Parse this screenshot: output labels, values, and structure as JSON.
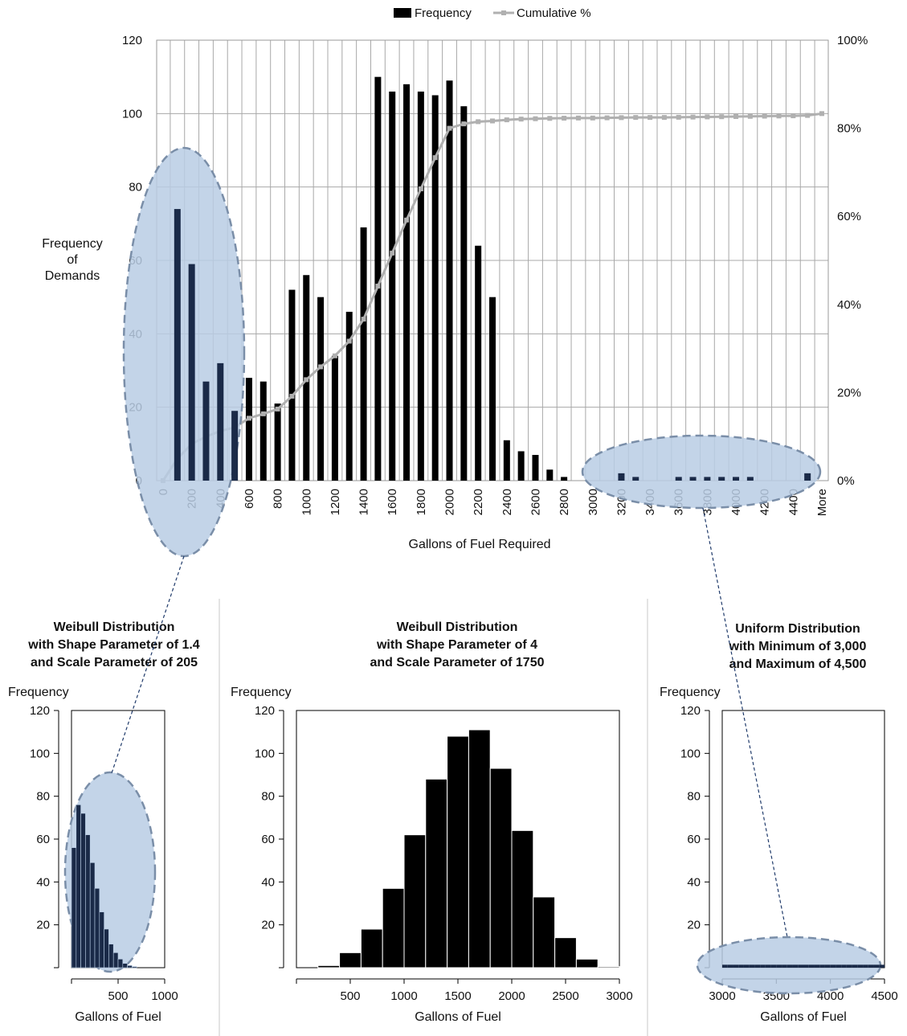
{
  "chart_data": [
    {
      "type": "bar",
      "xlabel": "Gallons of Fuel Required",
      "ylabel_lines": [
        "Frequency",
        "of",
        "Demands"
      ],
      "ylim": [
        0,
        120
      ],
      "y_ticks": [
        0,
        20,
        40,
        60,
        80,
        100,
        120
      ],
      "y2lim": [
        0,
        120
      ],
      "y2_ticks": [
        "0%",
        "20%",
        "40%",
        "60%",
        "80%",
        "100%"
      ],
      "legend_position": "top",
      "legend": [
        "Frequency",
        "Cumulative %"
      ],
      "colors": {
        "frequency": "#000000",
        "cumulative": "#b0b0b0",
        "highlight_fill": "#b8cce4",
        "highlight_stroke": "#7a8ea8"
      },
      "categories": [
        "0",
        "100",
        "200",
        "300",
        "400",
        "500",
        "600",
        "700",
        "800",
        "900",
        "1000",
        "1100",
        "1200",
        "1300",
        "1400",
        "1500",
        "1600",
        "1700",
        "1800",
        "1900",
        "2000",
        "2100",
        "2200",
        "2300",
        "2400",
        "2500",
        "2600",
        "2700",
        "2800",
        "2900",
        "3000",
        "3100",
        "3200",
        "3300",
        "3400",
        "3500",
        "3600",
        "3700",
        "3800",
        "3900",
        "4000",
        "4100",
        "4200",
        "4300",
        "4400",
        "4500",
        "More"
      ],
      "tick_labels": [
        "0",
        "",
        "200",
        "",
        "400",
        "",
        "600",
        "",
        "800",
        "",
        "1000",
        "",
        "1200",
        "",
        "1400",
        "",
        "1600",
        "",
        "1800",
        "",
        "2000",
        "",
        "2200",
        "",
        "2400",
        "",
        "2600",
        "",
        "2800",
        "",
        "3000",
        "",
        "3200",
        "",
        "3400",
        "",
        "3600",
        "",
        "3800",
        "",
        "4000",
        "",
        "4200",
        "",
        "4400",
        "",
        "More"
      ],
      "series": [
        {
          "name": "Frequency",
          "values": [
            0,
            74,
            59,
            27,
            32,
            19,
            28,
            27,
            21,
            52,
            56,
            50,
            34,
            46,
            69,
            110,
            106,
            108,
            106,
            105,
            109,
            102,
            64,
            50,
            11,
            8,
            7,
            3,
            1,
            0,
            0,
            0,
            2,
            1,
            0,
            0,
            1,
            1,
            1,
            1,
            1,
            1,
            0,
            0,
            0,
            2,
            0
          ]
        },
        {
          "name": "Cumulative %",
          "values": [
            0,
            6,
            10,
            12,
            13.5,
            14.5,
            17,
            18.2,
            19.5,
            23,
            27.5,
            31,
            34,
            38,
            44,
            53,
            62,
            71,
            79.5,
            88,
            96,
            97.2,
            97.8,
            98,
            98.3,
            98.5,
            98.6,
            98.7,
            98.75,
            98.8,
            98.8,
            98.85,
            98.9,
            98.95,
            98.95,
            98.95,
            99,
            99.05,
            99.1,
            99.15,
            99.2,
            99.25,
            99.3,
            99.35,
            99.4,
            99.5,
            100
          ]
        }
      ]
    },
    {
      "type": "bar",
      "title_lines": [
        "Weibull Distribution",
        "with  Shape Parameter of 1.4",
        "and  Scale Parameter of 205"
      ],
      "ylabel": "Frequency",
      "xlabel": "Gallons of Fuel",
      "xlim": [
        0,
        1000
      ],
      "ylim": [
        0,
        120
      ],
      "x_ticks": [
        "500",
        "1000"
      ],
      "y_ticks": [
        "20",
        "40",
        "60",
        "80",
        "100",
        "120"
      ],
      "bin_width": 50,
      "values": [
        56,
        76,
        72,
        62,
        49,
        37,
        26,
        18,
        11,
        7,
        4,
        2,
        1,
        0.5
      ]
    },
    {
      "type": "bar",
      "title_lines": [
        "Weibull Distribution",
        "with  Shape Parameter of 4",
        "and  Scale Parameter of 1750"
      ],
      "ylabel": "Frequency",
      "xlabel": "Gallons of Fuel",
      "xlim": [
        0,
        3000
      ],
      "ylim": [
        0,
        120
      ],
      "x_ticks": [
        "500",
        "1000",
        "1500",
        "2000",
        "2500",
        "3000"
      ],
      "y_ticks": [
        "20",
        "40",
        "60",
        "80",
        "100",
        "120"
      ],
      "bin_width": 200,
      "bins_start": 200,
      "values": [
        1,
        7,
        18,
        37,
        62,
        88,
        108,
        111,
        93,
        64,
        33,
        14,
        4,
        0.5
      ]
    },
    {
      "type": "bar",
      "title_lines": [
        "Uniform Distribution",
        "with Minimum of 3,000",
        "and Maximum of 4,500"
      ],
      "ylabel": "Frequency",
      "xlabel": "Gallons of Fuel",
      "xlim": [
        3000,
        4500
      ],
      "ylim": [
        0,
        120
      ],
      "x_ticks": [
        "3000",
        "3500",
        "4000",
        "4500"
      ],
      "y_ticks": [
        "20",
        "40",
        "60",
        "80",
        "100",
        "120"
      ],
      "bin_width": 50,
      "values": [
        1,
        1,
        1,
        1,
        1,
        1,
        1,
        1,
        1,
        1,
        1,
        1,
        1,
        1,
        1,
        1,
        1,
        1,
        1,
        1,
        1,
        1,
        1,
        1,
        1,
        1,
        1,
        1,
        1,
        1
      ]
    }
  ]
}
